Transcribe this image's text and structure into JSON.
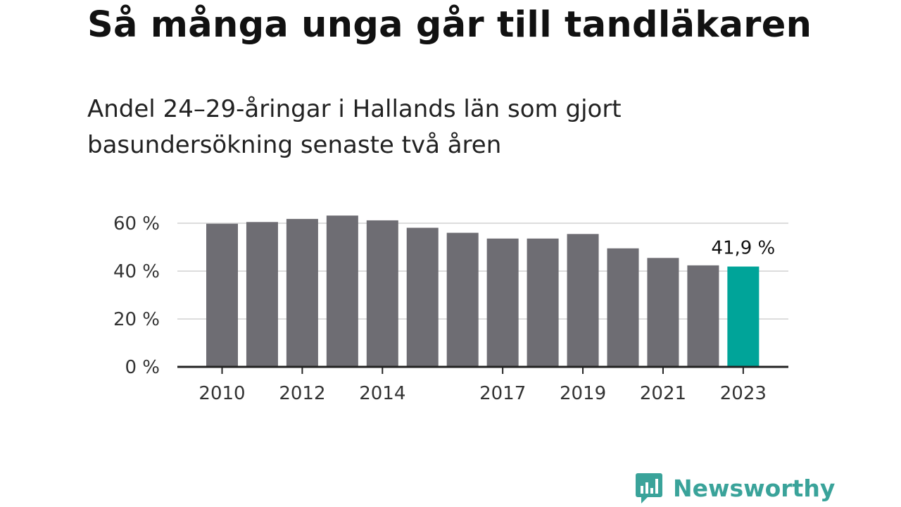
{
  "title": "Så många unga går till tandläkaren",
  "subtitle": "Andel 24–29-åringar i Hallands län som gjort basundersökning senaste två åren",
  "brand": "Newsworthy",
  "colors": {
    "bar": "#6e6d73",
    "highlight": "#00a499",
    "grid": "#dddddd",
    "axis": "#222222",
    "brand": "#3aa39a"
  },
  "icons": {
    "logo": "newsworthy-logo-icon"
  },
  "chart_data": {
    "type": "bar",
    "categories": [
      "2010",
      "2011",
      "2012",
      "2013",
      "2014",
      "2015",
      "2016",
      "2017",
      "2018",
      "2019",
      "2020",
      "2021",
      "2022",
      "2023"
    ],
    "values": [
      59.8,
      60.5,
      61.8,
      63.2,
      61.2,
      58.1,
      56.0,
      53.6,
      53.6,
      55.5,
      49.5,
      45.5,
      42.4,
      41.9
    ],
    "x_tick_labels": [
      {
        "category": "2010",
        "label": "2010"
      },
      {
        "category": "2012",
        "label": "2012"
      },
      {
        "category": "2014",
        "label": "2014"
      },
      {
        "category": "2017",
        "label": "2017"
      },
      {
        "category": "2019",
        "label": "2019"
      },
      {
        "category": "2021",
        "label": "2021"
      },
      {
        "category": "2023",
        "label": "2023"
      }
    ],
    "y_ticks": [
      {
        "value": 0,
        "label": "0 %"
      },
      {
        "value": 20,
        "label": "20 %"
      },
      {
        "value": 40,
        "label": "40 %"
      },
      {
        "value": 60,
        "label": "60 %"
      }
    ],
    "ylim": [
      0,
      68
    ],
    "grid": true,
    "highlight_category": "2023",
    "data_labels": [
      {
        "category": "2023",
        "label": "41,9 %"
      }
    ]
  }
}
